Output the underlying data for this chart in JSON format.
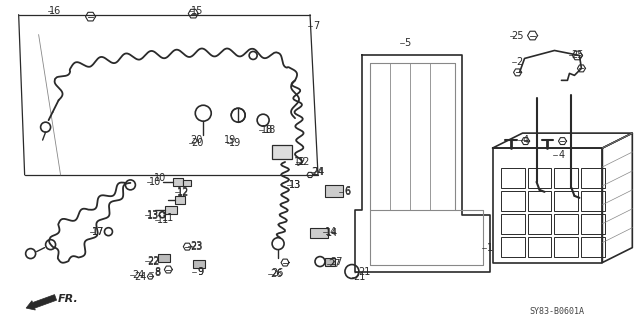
{
  "bg_color": "#ffffff",
  "fig_width": 6.37,
  "fig_height": 3.2,
  "dpi": 100,
  "diagram_code": "SY83-B0601A",
  "line_color": "#2a2a2a",
  "light_gray": "#888888"
}
